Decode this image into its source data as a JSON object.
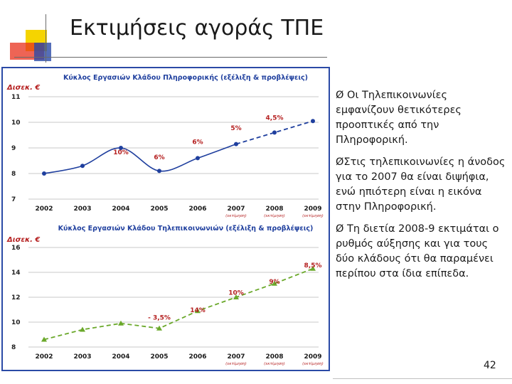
{
  "slide": {
    "title": "Εκτιμήσεις αγοράς ΤΠΕ",
    "page_number": "42"
  },
  "bullets": [
    {
      "marker": "Ø",
      "text": "Οι Τηλεπικοινωνίες εμφανίζουν θετικότερες προοπτικές από την Πληροφορική."
    },
    {
      "marker": "Ø",
      "text": "Στις τηλεπικοινωνίες η άνοδος για το 2007 θα είναι διψήφια, ενώ ηπιότερη είναι η εικόνα στην Πληροφορική."
    },
    {
      "marker": "Ø",
      "text": "Τη διετία 2008-9 εκτιμάται ο ρυθμός αύξησης και για τους δύο κλάδους ότι θα παραμένει περίπου στα ίδια επίπεδα."
    }
  ],
  "colors": {
    "deco_yellow": "#f5d400",
    "deco_red": "#e8301c",
    "deco_blue": "#2b4aa6",
    "chart_border": "#2b4aa6",
    "it_line": "#1f3f9e",
    "telecom_line": "#6aa82a",
    "chart_title": "#1f3f9e",
    "axis_label": "#b52020"
  },
  "chart_data": [
    {
      "type": "line",
      "title": "Κύκλος Εργασιών Κλάδου Πληροφορικής (εξέλιξη & προβλέψεις)",
      "ylabel": "Δισεκ. €",
      "xlabel": "",
      "categories": [
        "2002",
        "2003",
        "2004",
        "2005",
        "2006",
        "2007",
        "2008",
        "2009"
      ],
      "category_notes": [
        "",
        "",
        "",
        "",
        "",
        "(εκτίμηση)",
        "(εκτίμηση)",
        "(εκτίμηση)"
      ],
      "values": [
        8.0,
        8.3,
        9.0,
        8.1,
        8.6,
        9.15,
        9.6,
        10.05
      ],
      "y_ticks": [
        7,
        8,
        9,
        10,
        11
      ],
      "ylim": [
        7,
        11
      ],
      "style": "solid curve for actuals, dashed for estimates",
      "grid": true,
      "annotations": [
        {
          "text": "10%",
          "x": "2004",
          "y": 8.75
        },
        {
          "text": "6%",
          "x": "2005",
          "y": 8.55
        },
        {
          "text": "6%",
          "x": "2006",
          "y": 9.15
        },
        {
          "text": "5%",
          "x": "2007",
          "y": 9.7
        },
        {
          "text": "4,5%",
          "x": "2008",
          "y": 10.1
        }
      ]
    },
    {
      "type": "line",
      "title": "Κύκλος Εργασιών Κλάδου Τηλεπικοινωνιών (εξέλιξη & προβλέψεις)",
      "ylabel": "Δισεκ. €",
      "xlabel": "",
      "categories": [
        "2002",
        "2003",
        "2004",
        "2005",
        "2006",
        "2007",
        "2008",
        "2009"
      ],
      "category_notes": [
        "",
        "",
        "",
        "",
        "",
        "(εκτίμηση)",
        "(εκτίμηση)",
        "(εκτίμηση)"
      ],
      "values": [
        8.6,
        9.4,
        9.9,
        9.5,
        10.9,
        12.0,
        13.1,
        14.3
      ],
      "y_ticks": [
        8,
        10,
        12,
        14,
        16
      ],
      "ylim": [
        8,
        16
      ],
      "style": "dashed line, triangle markers",
      "grid": true,
      "annotations": [
        {
          "text": "- 3,5%",
          "x": "2005",
          "y": 10.2
        },
        {
          "text": "14%",
          "x": "2006",
          "y": 10.8
        },
        {
          "text": "10%",
          "x": "2007",
          "y": 12.2
        },
        {
          "text": "9%",
          "x": "2008",
          "y": 13.1
        },
        {
          "text": "8,5%",
          "x": "2009",
          "y": 14.4
        }
      ]
    }
  ]
}
